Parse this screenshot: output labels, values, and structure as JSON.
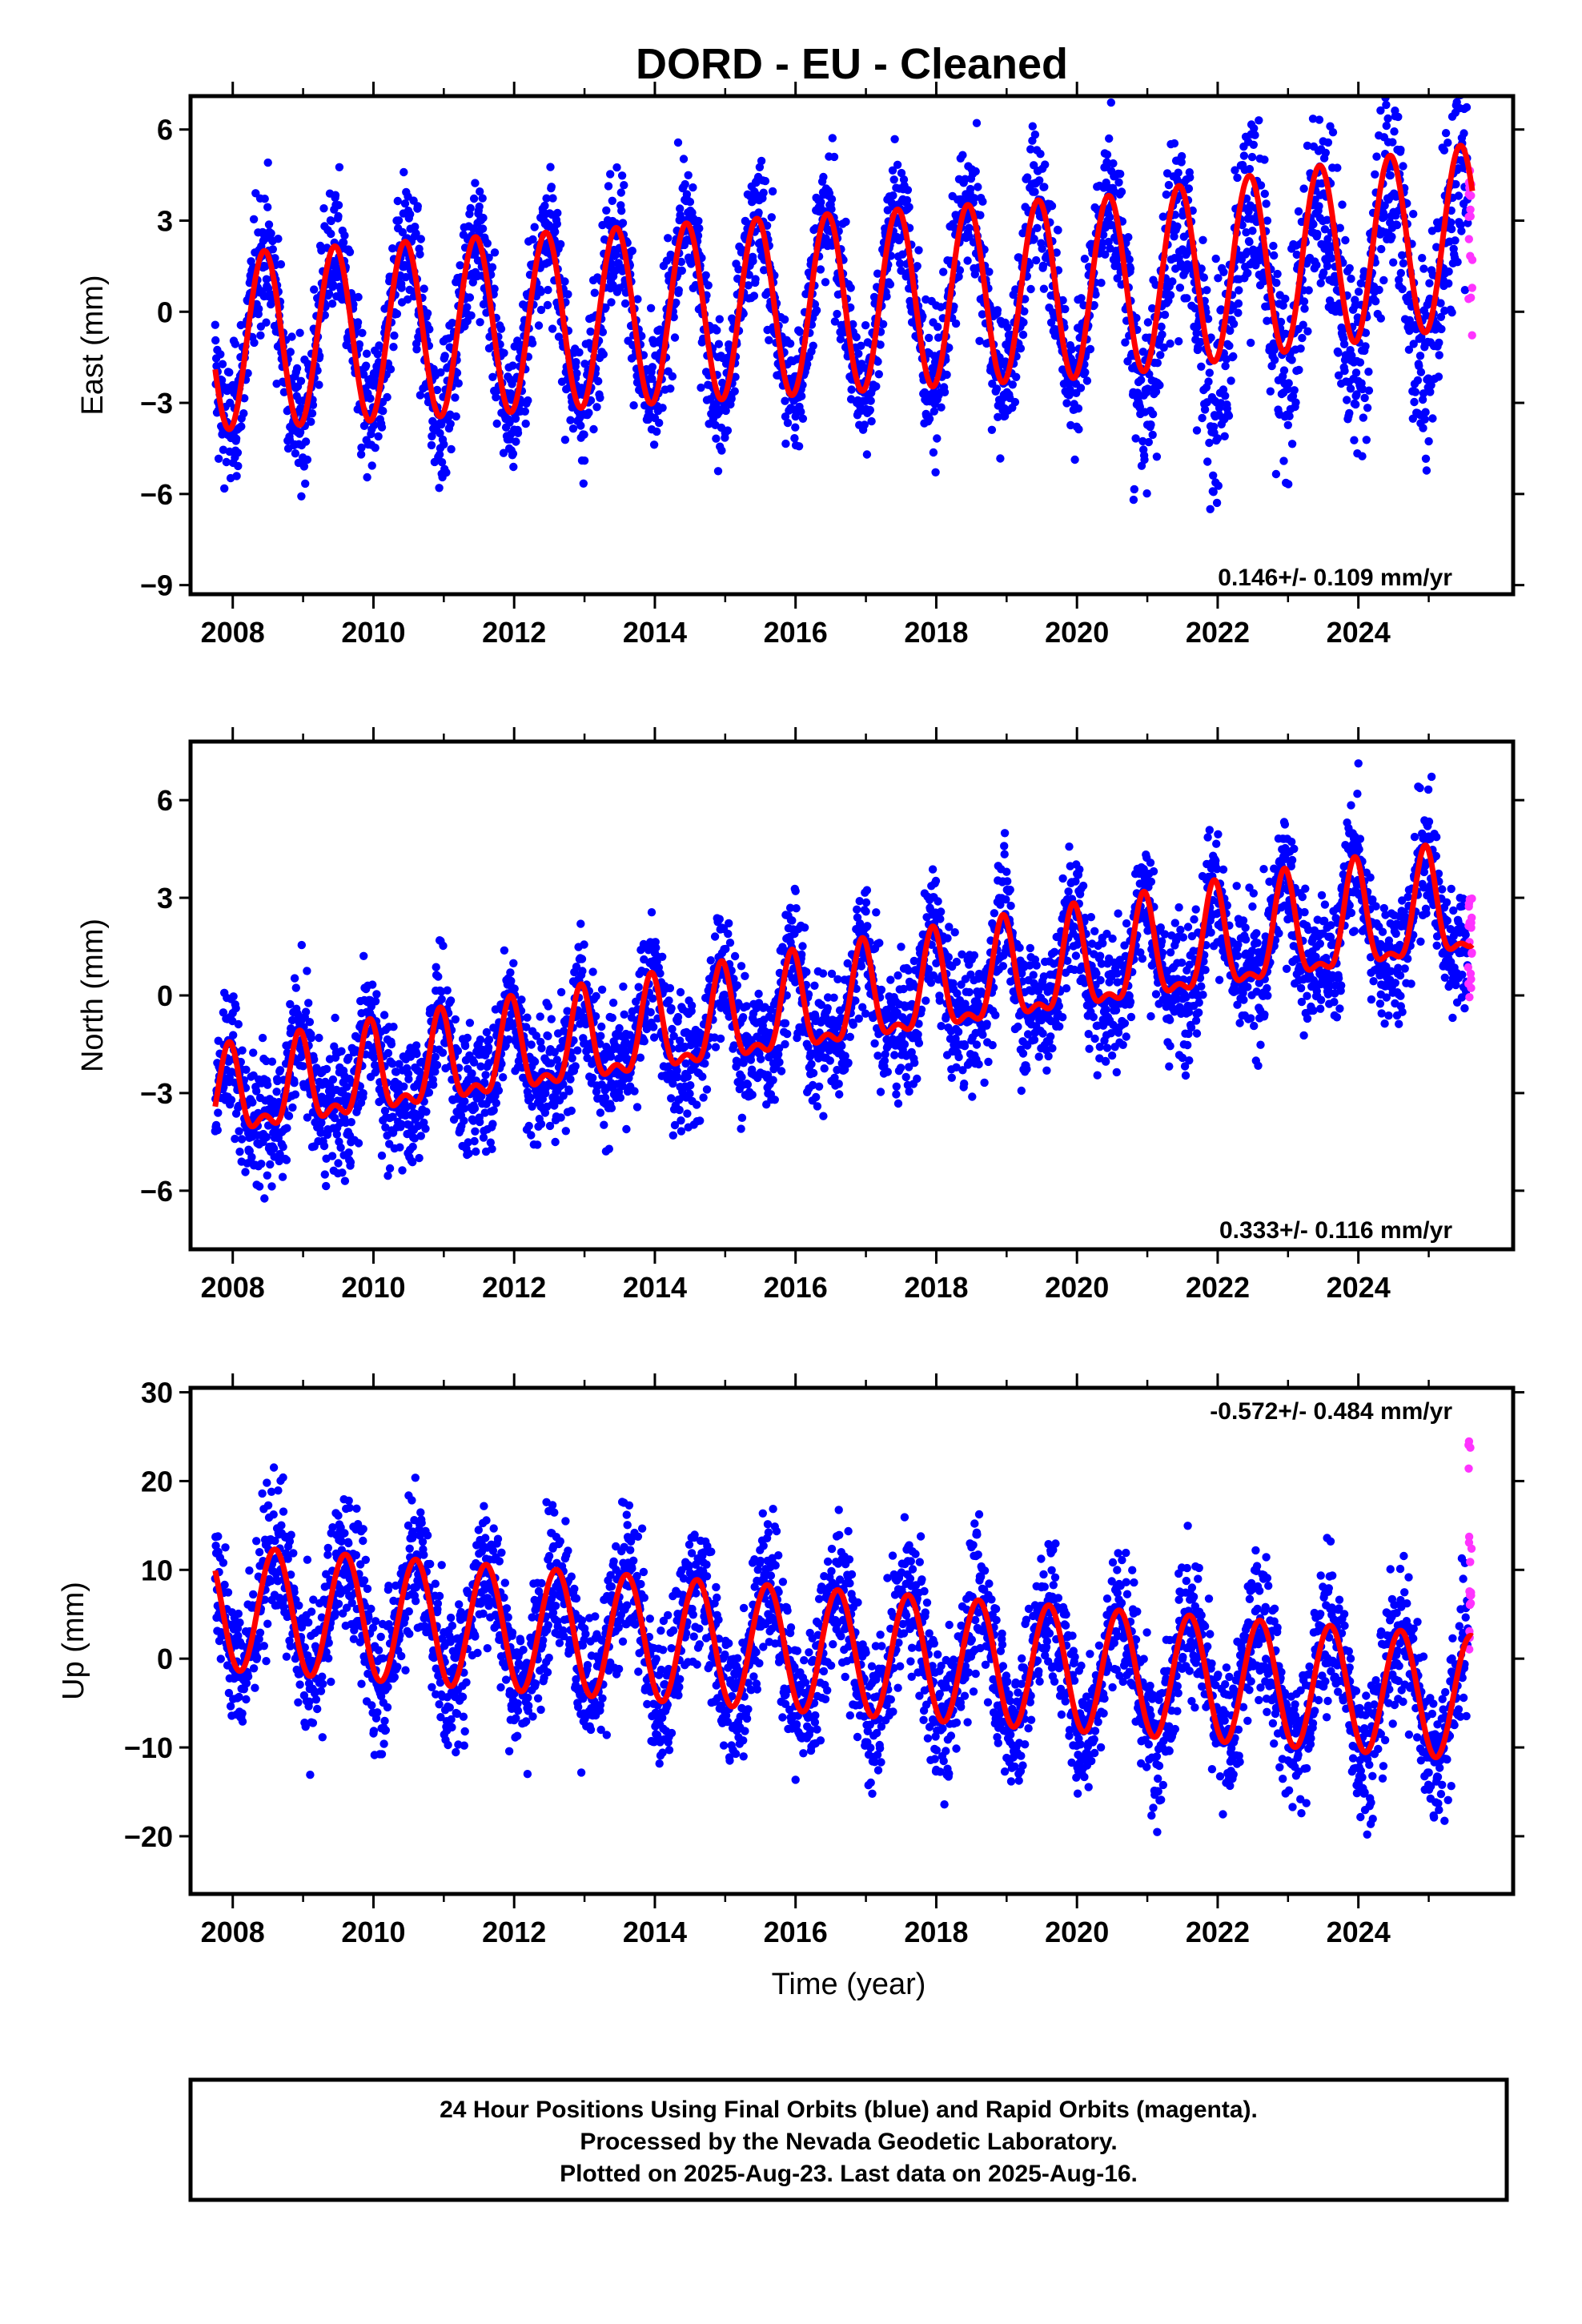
{
  "title": "DORD  - EU - Cleaned",
  "xlabel": "Time (year)",
  "footer": {
    "line1": "24 Hour Positions Using Final Orbits (blue) and Rapid Orbits (magenta).",
    "line2": "Processed by the Nevada Geodetic Laboratory.",
    "line3": "Plotted on 2025-Aug-23. Last data on 2025-Aug-16."
  },
  "colors": {
    "final": "#0000ff",
    "rapid": "#ff33ff",
    "model": "#ff0000"
  },
  "chart_data": [
    {
      "type": "scatter",
      "ylabel": "East (mm)",
      "rate": "0.146+/- 0.109 mm/yr",
      "xlim": [
        2007.4,
        2026.2
      ],
      "ylim": [
        -9.3,
        7.1
      ],
      "yticks": [
        6,
        3,
        0,
        -3,
        -6,
        -9
      ],
      "xticks": [
        2008,
        2010,
        2012,
        2014,
        2016,
        2018,
        2020,
        2022,
        2024
      ],
      "data_range": [
        2007.75,
        2025.62
      ],
      "model": {
        "offset": -1.0,
        "trend": 0.146,
        "amp_start": 2.9,
        "amp_end": 3.0,
        "phase_peak": 0.45,
        "center_drift": 0.9,
        "semiannual": 0.0,
        "noise": 1.1
      },
      "series": [
        {
          "values": "final"
        },
        {
          "values": "rapid",
          "x_range": [
            2025.56,
            2025.62
          ],
          "y_range": [
            -0.8,
            4.8
          ]
        }
      ]
    },
    {
      "type": "scatter",
      "ylabel": "North (mm)",
      "rate": "0.333+/- 0.116 mm/yr",
      "xlim": [
        2007.4,
        2026.2
      ],
      "ylim": [
        -7.8,
        7.8
      ],
      "yticks": [
        6,
        3,
        0,
        -3,
        -6
      ],
      "xticks": [
        2008,
        2010,
        2012,
        2014,
        2016,
        2018,
        2020,
        2022,
        2024
      ],
      "data_range": [
        2007.75,
        2025.62
      ],
      "model": {
        "offset": -3.3,
        "trend": 0.333,
        "amp_start": 1.2,
        "amp_end": 1.6,
        "phase_peak": 0.95,
        "center_drift": 0.0,
        "semiannual": 0.6,
        "noise": 1.0
      },
      "series": [
        {
          "values": "final"
        },
        {
          "values": "rapid",
          "x_range": [
            2025.56,
            2025.62
          ],
          "y_range": [
            -0.2,
            3.4
          ]
        }
      ]
    },
    {
      "type": "scatter",
      "ylabel": "Up (mm)",
      "rate": "-0.572+/- 0.484 mm/yr",
      "xlim": [
        2007.4,
        2026.2
      ],
      "ylim": [
        -26.5,
        30.5
      ],
      "yticks": [
        30,
        20,
        10,
        0,
        -10,
        -20
      ],
      "xticks": [
        2008,
        2010,
        2012,
        2014,
        2016,
        2018,
        2020,
        2022,
        2024
      ],
      "data_range": [
        2007.75,
        2025.62
      ],
      "model": {
        "offset": 5.8,
        "trend": -0.572,
        "amp_start": 7.0,
        "amp_end": 7.0,
        "phase_peak": 0.6,
        "center_drift": 0.0,
        "semiannual": 0.0,
        "noise": 4.0
      },
      "series": [
        {
          "values": "final"
        },
        {
          "values": "rapid",
          "x_range": [
            2025.56,
            2025.62
          ],
          "y_range": [
            1.0,
            24.5
          ]
        }
      ]
    }
  ]
}
